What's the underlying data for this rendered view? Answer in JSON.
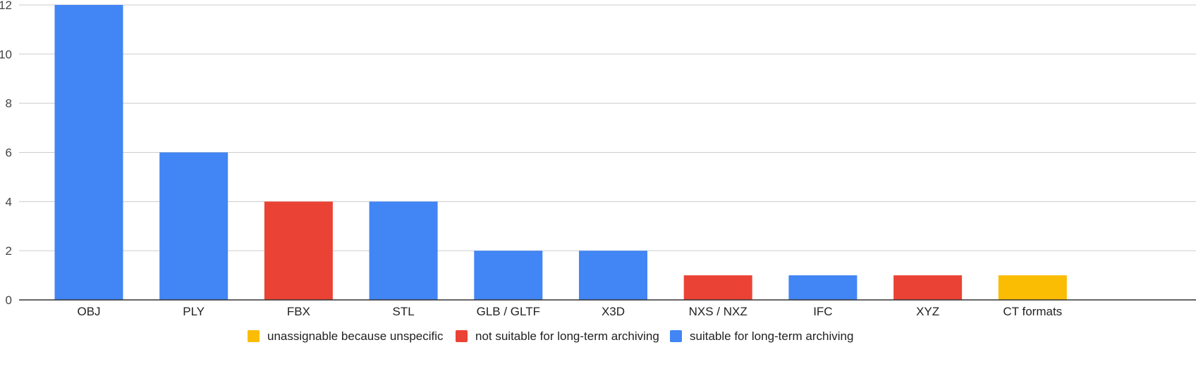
{
  "chart_data": {
    "type": "bar",
    "title": "",
    "xlabel": "",
    "ylabel": "",
    "ylim": [
      0,
      12
    ],
    "yticks": [
      0,
      2,
      4,
      6,
      8,
      10,
      12
    ],
    "grid": true,
    "legend_position": "bottom",
    "categories": [
      "OBJ",
      "PLY",
      "FBX",
      "STL",
      "GLB / GLTF",
      "X3D",
      "NXS / NXZ",
      "IFC",
      "XYZ",
      "CT formats"
    ],
    "values": [
      12,
      6,
      4,
      4,
      2,
      2,
      1,
      1,
      1,
      1
    ],
    "bar_groups": [
      "suitable",
      "suitable",
      "not_suitable",
      "suitable",
      "suitable",
      "suitable",
      "not_suitable",
      "suitable",
      "not_suitable",
      "unassignable"
    ],
    "legend": [
      {
        "key": "unassignable",
        "label": "unassignable because unspecific",
        "color": "#FBBC04"
      },
      {
        "key": "not_suitable",
        "label": "not suitable for long-term archiving",
        "color": "#EA4335"
      },
      {
        "key": "suitable",
        "label": "suitable for long-term archiving",
        "color": "#4285F4"
      }
    ]
  }
}
